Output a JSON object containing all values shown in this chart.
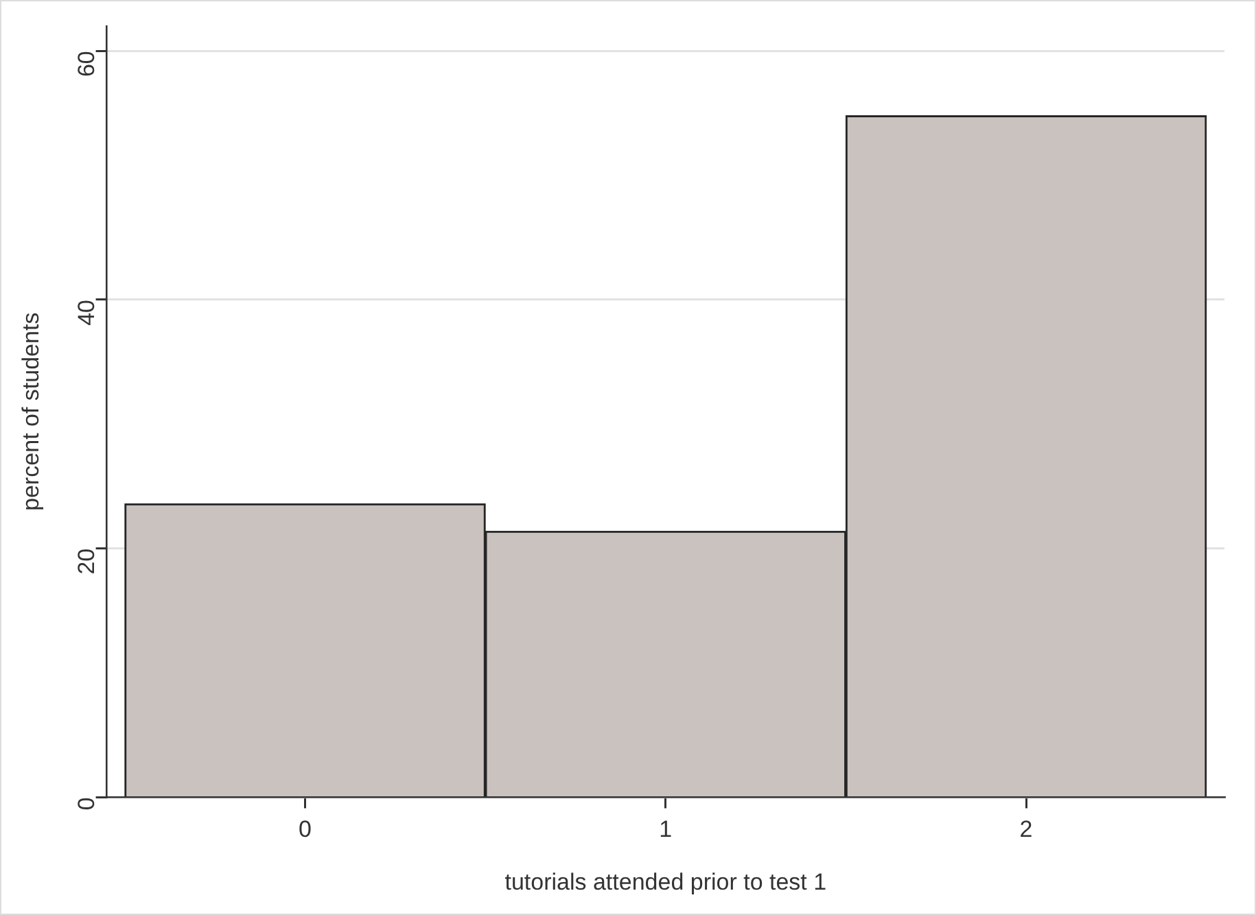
{
  "chart_data": {
    "type": "histogram",
    "xlabel": "tutorials attended prior to test 1",
    "ylabel": "percent of students",
    "bins": [
      -0.5,
      0.5,
      1.5,
      2.5
    ],
    "values": [
      23.6,
      21.4,
      54.8
    ],
    "color": "#cac2be",
    "xlim": [
      -0.55,
      2.55
    ],
    "xticks": [
      0,
      1,
      2
    ],
    "ylim": [
      0,
      62
    ],
    "yticks": [
      0,
      20,
      40,
      60
    ],
    "grid": "y",
    "legend": false
  }
}
